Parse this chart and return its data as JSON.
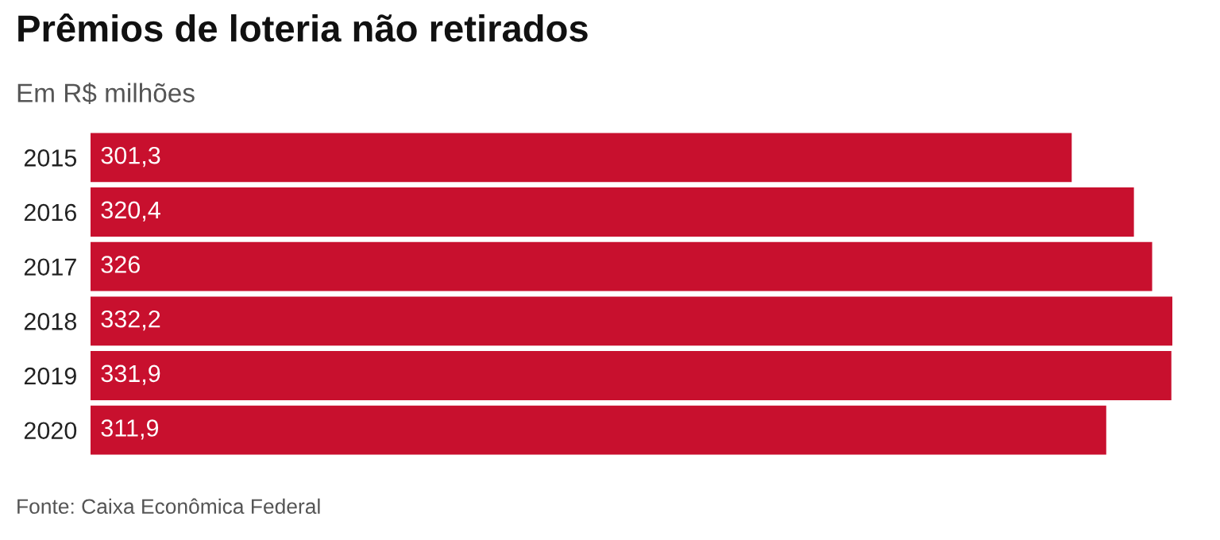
{
  "chart_data": {
    "type": "bar",
    "orientation": "horizontal",
    "title": "Prêmios de loteria não retirados",
    "subtitle": "Em R$ milhões",
    "categories": [
      "2015",
      "2016",
      "2017",
      "2018",
      "2019",
      "2020"
    ],
    "values": [
      301.3,
      320.4,
      326,
      332.2,
      331.9,
      311.9
    ],
    "value_labels": [
      "301,3",
      "320,4",
      "326",
      "332,2",
      "331,9",
      "311,9"
    ],
    "color": "#c8102e",
    "grid": false,
    "annotations": [
      "Fonte: Caixa Econômica Federal"
    ]
  }
}
